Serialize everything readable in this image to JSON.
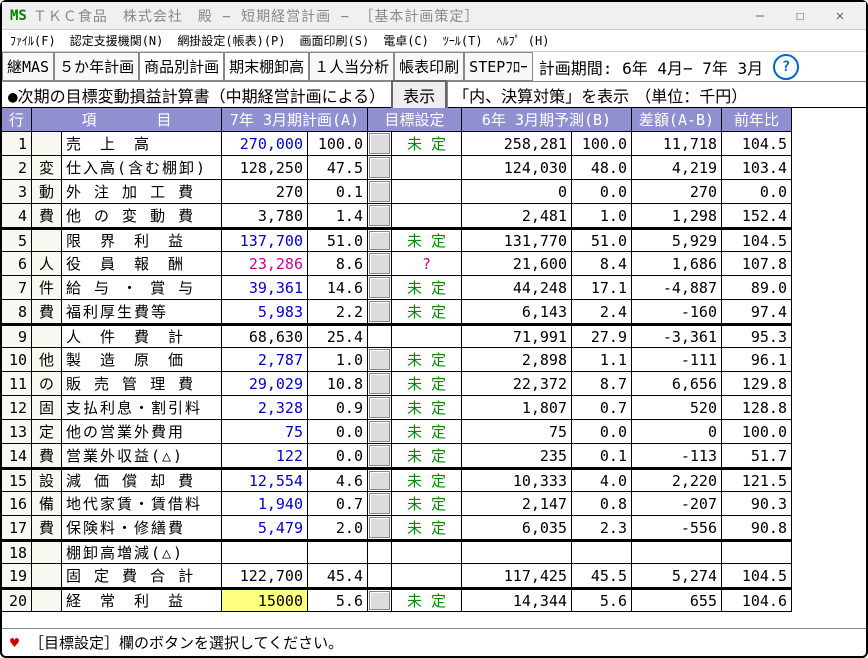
{
  "window": {
    "logo": "MS",
    "title": "ＴＫＣ食品　株式会社　殿 − 短期経営計画 − ［基本計画策定］"
  },
  "menu": {
    "m1": "ﾌｧｲﾙ(F)",
    "m2": "認定支援機関(N)",
    "m3": "網掛設定(帳表)(P)",
    "m4": "画面印刷(S)",
    "m5": "電卓(C)",
    "m6": "ﾂｰﾙ(T)",
    "m7": "ﾍﾙﾌﾟ (H)"
  },
  "toolbar": {
    "b1": "継MAS",
    "b2": "５か年計画",
    "b3": "商品別計画",
    "b4": "期末棚卸高",
    "b5": "１人当分析",
    "b6": "帳表印刷",
    "b7": "STEPﾌﾛｰ",
    "period": "計画期間: 6年 4月− 7年 3月",
    "help": "?"
  },
  "header2": {
    "title": "●次期の目標変動損益計算書（中期経営計画による）",
    "btn1": "表示",
    "note": "「内、決算対策」を表示",
    "unit": "（単位：千円）"
  },
  "cols": {
    "c1": "行",
    "c2": "項　　　　目",
    "c3": "7年 3月期計画(A)",
    "c4": "目標設定",
    "c5": "6年 3月期予測(B)",
    "c6": "差額(A-B)",
    "c7": "前年比"
  },
  "cats": {
    "r2": "変",
    "r3": "動",
    "r4": "費",
    "r6": "人",
    "r7": "件",
    "r8": "費",
    "r10": "他",
    "r11": "の",
    "r12": "固",
    "r13": "定",
    "r14": "費",
    "r15": "設",
    "r16": "備",
    "r17": "費"
  },
  "rows": [
    {
      "n": "1",
      "cat": "",
      "item": "売　上　高",
      "a": "270,000",
      "ap": "100.0",
      "btn": true,
      "g": "未 定",
      "b": "258,281",
      "bp": "100.0",
      "d": "11,718",
      "r": "104.5",
      "blue": true
    },
    {
      "n": "2",
      "cat": "r2",
      "item": "仕入高(含む棚卸)",
      "a": "128,250",
      "ap": "47.5",
      "btn": true,
      "g": "",
      "b": "124,030",
      "bp": "48.0",
      "d": "4,219",
      "r": "103.4"
    },
    {
      "n": "3",
      "cat": "r3",
      "item": "外 注 加 工 費",
      "a": "270",
      "ap": "0.1",
      "btn": true,
      "g": "",
      "b": "0",
      "bp": "0.0",
      "d": "270",
      "r": "0.0"
    },
    {
      "n": "4",
      "cat": "r4",
      "item": "他 の 変 動 費",
      "a": "3,780",
      "ap": "1.4",
      "btn": true,
      "g": "",
      "b": "2,481",
      "bp": "1.0",
      "d": "1,298",
      "r": "152.4"
    },
    {
      "n": "5",
      "cat": "",
      "item": "限　界　利　益",
      "a": "137,700",
      "ap": "51.0",
      "btn": true,
      "g": "未 定",
      "b": "131,770",
      "bp": "51.0",
      "d": "5,929",
      "r": "104.5",
      "blue": true,
      "thick": true
    },
    {
      "n": "6",
      "cat": "r6",
      "item": "役　員　報　酬",
      "a": "23,286",
      "ap": "8.6",
      "btn": true,
      "g": "?",
      "gpink": true,
      "b": "21,600",
      "bp": "8.4",
      "d": "1,686",
      "r": "107.8",
      "pink": true
    },
    {
      "n": "7",
      "cat": "r7",
      "item": "給 与 ・ 賞 与",
      "a": "39,361",
      "ap": "14.6",
      "btn": true,
      "g": "未 定",
      "b": "44,248",
      "bp": "17.1",
      "d": "-4,887",
      "r": "89.0",
      "blue": true
    },
    {
      "n": "8",
      "cat": "r8",
      "item": "福利厚生費等",
      "a": "5,983",
      "ap": "2.2",
      "btn": true,
      "g": "未 定",
      "b": "6,143",
      "bp": "2.4",
      "d": "-160",
      "r": "97.4",
      "blue": true
    },
    {
      "n": "9",
      "cat": "",
      "item": "人　件　費　計",
      "a": "68,630",
      "ap": "25.4",
      "btn": false,
      "g": "",
      "b": "71,991",
      "bp": "27.9",
      "d": "-3,361",
      "r": "95.3",
      "thick": true
    },
    {
      "n": "10",
      "cat": "r10",
      "item": "製　造　原　価",
      "a": "2,787",
      "ap": "1.0",
      "btn": true,
      "g": "未 定",
      "b": "2,898",
      "bp": "1.1",
      "d": "-111",
      "r": "96.1",
      "blue": true
    },
    {
      "n": "11",
      "cat": "r11",
      "item": "販 売 管 理 費",
      "a": "29,029",
      "ap": "10.8",
      "btn": true,
      "g": "未 定",
      "b": "22,372",
      "bp": "8.7",
      "d": "6,656",
      "r": "129.8",
      "blue": true
    },
    {
      "n": "12",
      "cat": "r12",
      "item": "支払利息・割引料",
      "a": "2,328",
      "ap": "0.9",
      "btn": true,
      "g": "未 定",
      "b": "1,807",
      "bp": "0.7",
      "d": "520",
      "r": "128.8",
      "blue": true
    },
    {
      "n": "13",
      "cat": "r13",
      "item": "他の営業外費用",
      "a": "75",
      "ap": "0.0",
      "btn": true,
      "g": "未 定",
      "b": "75",
      "bp": "0.0",
      "d": "0",
      "r": "100.0",
      "blue": true
    },
    {
      "n": "14",
      "cat": "r14",
      "item": "営業外収益(△)",
      "a": "122",
      "ap": "0.0",
      "btn": true,
      "g": "未 定",
      "b": "235",
      "bp": "0.1",
      "d": "-113",
      "r": "51.7",
      "blue": true
    },
    {
      "n": "15",
      "cat": "r15",
      "item": "減 価 償 却 費",
      "a": "12,554",
      "ap": "4.6",
      "btn": true,
      "g": "未 定",
      "b": "10,333",
      "bp": "4.0",
      "d": "2,220",
      "r": "121.5",
      "blue": true,
      "thick": true
    },
    {
      "n": "16",
      "cat": "r16",
      "item": "地代家賃・賃借料",
      "a": "1,940",
      "ap": "0.7",
      "btn": true,
      "g": "未 定",
      "b": "2,147",
      "bp": "0.8",
      "d": "-207",
      "r": "90.3",
      "blue": true
    },
    {
      "n": "17",
      "cat": "r17",
      "item": "保険料・修繕費",
      "a": "5,479",
      "ap": "2.0",
      "btn": true,
      "g": "未 定",
      "b": "6,035",
      "bp": "2.3",
      "d": "-556",
      "r": "90.8",
      "blue": true
    },
    {
      "n": "18",
      "cat": "",
      "item": "棚卸高増減(△)",
      "a": "",
      "ap": "",
      "btn": false,
      "g": "",
      "b": "",
      "bp": "",
      "d": "",
      "r": "",
      "thick": true
    },
    {
      "n": "19",
      "cat": "",
      "item": "固 定 費 合 計",
      "a": "122,700",
      "ap": "45.4",
      "btn": false,
      "g": "",
      "b": "117,425",
      "bp": "45.5",
      "d": "5,274",
      "r": "104.5"
    },
    {
      "n": "20",
      "cat": "",
      "item": "経　常　利　益",
      "a": "15000",
      "ap": "5.6",
      "btn": true,
      "g": "未 定",
      "b": "14,344",
      "bp": "5.6",
      "d": "655",
      "r": "104.6",
      "hl": true,
      "thick": true
    }
  ],
  "status": "［目標設定］欄のボタンを選択してください。"
}
